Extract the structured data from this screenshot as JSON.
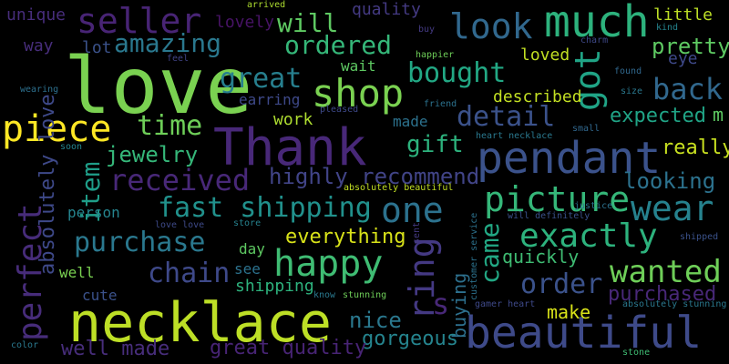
{
  "words": [
    {
      "text": "love",
      "color": "#7ad151"
    },
    {
      "text": "necklace",
      "color": "#bddf26"
    },
    {
      "text": "Thank",
      "color": "#482878"
    },
    {
      "text": "beautiful",
      "color": "#3e4a89"
    },
    {
      "text": "much",
      "color": "#2db27d"
    },
    {
      "text": "pendant",
      "color": "#3b528b"
    },
    {
      "text": "seller",
      "color": "#482475"
    },
    {
      "text": "look",
      "color": "#31688e"
    },
    {
      "text": "shop",
      "color": "#7ad151"
    },
    {
      "text": "piece",
      "color": "#fde725"
    },
    {
      "text": "got",
      "color": "#20a486"
    },
    {
      "text": "perfect",
      "color": "#472c7a"
    },
    {
      "text": "amazing",
      "color": "#2a788e"
    },
    {
      "text": "will",
      "color": "#5ec962"
    },
    {
      "text": "ordered",
      "color": "#35b779"
    },
    {
      "text": "great",
      "color": "#277f8e"
    },
    {
      "text": "bought",
      "color": "#22a884"
    },
    {
      "text": "back",
      "color": "#31688e"
    },
    {
      "text": "time",
      "color": "#6ece58"
    },
    {
      "text": "received",
      "color": "#482878"
    },
    {
      "text": "picture",
      "color": "#35b779"
    },
    {
      "text": "one",
      "color": "#2c728e"
    },
    {
      "text": "wear",
      "color": "#26828e"
    },
    {
      "text": "exactly",
      "color": "#2db27d"
    },
    {
      "text": "fast shipping",
      "color": "#21918c"
    },
    {
      "text": "purchase",
      "color": "#2a788e"
    },
    {
      "text": "happy",
      "color": "#3fbc73"
    },
    {
      "text": "ring",
      "color": "#443983"
    },
    {
      "text": "came",
      "color": "#22a884"
    },
    {
      "text": "wanted",
      "color": "#6ece58"
    },
    {
      "text": "chain",
      "color": "#3e4989"
    },
    {
      "text": "order",
      "color": "#3b528b"
    },
    {
      "text": "jewelry",
      "color": "#35b779"
    },
    {
      "text": "item",
      "color": "#1f9e89"
    },
    {
      "text": "detail",
      "color": "#3b528b"
    },
    {
      "text": "gift",
      "color": "#2db27d"
    },
    {
      "text": "pretty",
      "color": "#5ec962"
    },
    {
      "text": "expected",
      "color": "#20a486"
    },
    {
      "text": "looking",
      "color": "#2c728e"
    },
    {
      "text": "highly recommend",
      "color": "#414487"
    },
    {
      "text": "everything",
      "color": "#d8e219"
    },
    {
      "text": "absolutely love",
      "color": "#3e4989"
    },
    {
      "text": "s",
      "color": "#482878"
    },
    {
      "text": "purchased",
      "color": "#482878"
    },
    {
      "text": "really",
      "color": "#c8e020"
    },
    {
      "text": "nice",
      "color": "#2a788e"
    },
    {
      "text": "gorgeous",
      "color": "#25848e"
    },
    {
      "text": "well made",
      "color": "#472d7b"
    },
    {
      "text": "great quality",
      "color": "#482475"
    },
    {
      "text": "make",
      "color": "#d8e219"
    },
    {
      "text": "quickly",
      "color": "#3fbc73"
    },
    {
      "text": "buying",
      "color": "#2d708e"
    },
    {
      "text": "quality",
      "color": "#443a83"
    },
    {
      "text": "lovely",
      "color": "#471365"
    },
    {
      "text": "unique",
      "color": "#472d7b"
    },
    {
      "text": "way",
      "color": "#472d7b"
    },
    {
      "text": "lot",
      "color": "#3b528b"
    },
    {
      "text": "wait",
      "color": "#5ec962"
    },
    {
      "text": "earring",
      "color": "#3e4989"
    },
    {
      "text": "work",
      "color": "#addc30"
    },
    {
      "text": "made",
      "color": "#2c728e"
    },
    {
      "text": "described",
      "color": "#c2df23"
    },
    {
      "text": "loved",
      "color": "#c2df23"
    },
    {
      "text": "little",
      "color": "#bddf26"
    },
    {
      "text": "eye",
      "color": "#3e4989"
    },
    {
      "text": "m",
      "color": "#5ec962"
    },
    {
      "text": "person",
      "color": "#25848e"
    },
    {
      "text": "well",
      "color": "#7ad151"
    },
    {
      "text": "cute",
      "color": "#3b528b"
    },
    {
      "text": "see",
      "color": "#2c728e"
    },
    {
      "text": "day",
      "color": "#5ec962"
    },
    {
      "text": "shipping",
      "color": "#2db27d"
    },
    {
      "text": "store",
      "color": "#26828e"
    },
    {
      "text": "love love",
      "color": "#3e4a89"
    },
    {
      "text": "absolutely beautiful",
      "color": "#c2df23"
    },
    {
      "text": "friend",
      "color": "#2c728e"
    },
    {
      "text": "happier",
      "color": "#6ece58"
    },
    {
      "text": "feel",
      "color": "#414487"
    },
    {
      "text": "wearing",
      "color": "#2d708e"
    },
    {
      "text": "arrived",
      "color": "#addc30"
    },
    {
      "text": "buy",
      "color": "#443a83"
    },
    {
      "text": "charm",
      "color": "#3e4989"
    },
    {
      "text": "kind",
      "color": "#25848e"
    },
    {
      "text": "found",
      "color": "#31688e"
    },
    {
      "text": "size",
      "color": "#2a788e"
    },
    {
      "text": "pleased",
      "color": "#3e4989"
    },
    {
      "text": "heart necklace",
      "color": "#2a788e"
    },
    {
      "text": "small",
      "color": "#31688e"
    },
    {
      "text": "justice",
      "color": "#2c728e"
    },
    {
      "text": "will definitely",
      "color": "#3b528b"
    },
    {
      "text": "soon",
      "color": "#25848e"
    },
    {
      "text": "sent",
      "color": "#443983"
    },
    {
      "text": "customer service",
      "color": "#2c728e"
    },
    {
      "text": "know",
      "color": "#2a788e"
    },
    {
      "text": "stunning",
      "color": "#6ece58"
    },
    {
      "text": "gamer heart",
      "color": "#3e4989"
    },
    {
      "text": "absolutely stunning",
      "color": "#2a788e"
    },
    {
      "text": "shipped",
      "color": "#3b528b"
    },
    {
      "text": "color",
      "color": "#2a788e"
    },
    {
      "text": "stone",
      "color": "#3fbc73"
    }
  ]
}
